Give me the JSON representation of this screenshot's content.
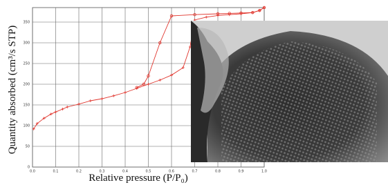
{
  "chart_data": {
    "type": "line",
    "x_label": "Relative pressure (P/P₀)",
    "y_label": "Quantity absorbed (cm³/s STP)",
    "xlim": [
      0,
      1
    ],
    "ylim": [
      0,
      385
    ],
    "xticks": [
      {
        "value": 0,
        "label": "0.0"
      },
      0.1,
      0.2,
      0.3,
      0.4,
      0.5,
      0.6,
      0.7,
      0.8,
      0.9,
      {
        "value": 1,
        "label": "1.0"
      }
    ],
    "yticks": [
      0,
      50,
      100,
      150,
      200,
      250,
      300,
      350
    ],
    "grid": true,
    "series": [
      {
        "color": "#e0332b",
        "marker": "plus",
        "x": [
          0.005,
          0.02,
          0.05,
          0.08,
          0.1,
          0.13,
          0.15,
          0.2,
          0.25,
          0.3,
          0.35,
          0.4,
          0.45,
          0.5,
          0.55,
          0.6,
          0.65,
          0.68,
          0.7,
          0.75,
          0.8,
          0.85,
          0.9,
          0.95,
          0.98,
          1.0
        ],
        "values": [
          92,
          105,
          118,
          128,
          133,
          140,
          145,
          152,
          160,
          165,
          172,
          180,
          190,
          200,
          210,
          222,
          240,
          290,
          355,
          362,
          366,
          368,
          370,
          373,
          378,
          385
        ]
      },
      {
        "color": "#e0332b",
        "marker": "circle",
        "x": [
          1.0,
          0.98,
          0.95,
          0.9,
          0.85,
          0.8,
          0.7,
          0.6,
          0.55,
          0.5,
          0.48,
          0.45
        ],
        "values": [
          385,
          378,
          373,
          372,
          371,
          370,
          368,
          365,
          300,
          220,
          200,
          192
        ]
      }
    ]
  }
}
